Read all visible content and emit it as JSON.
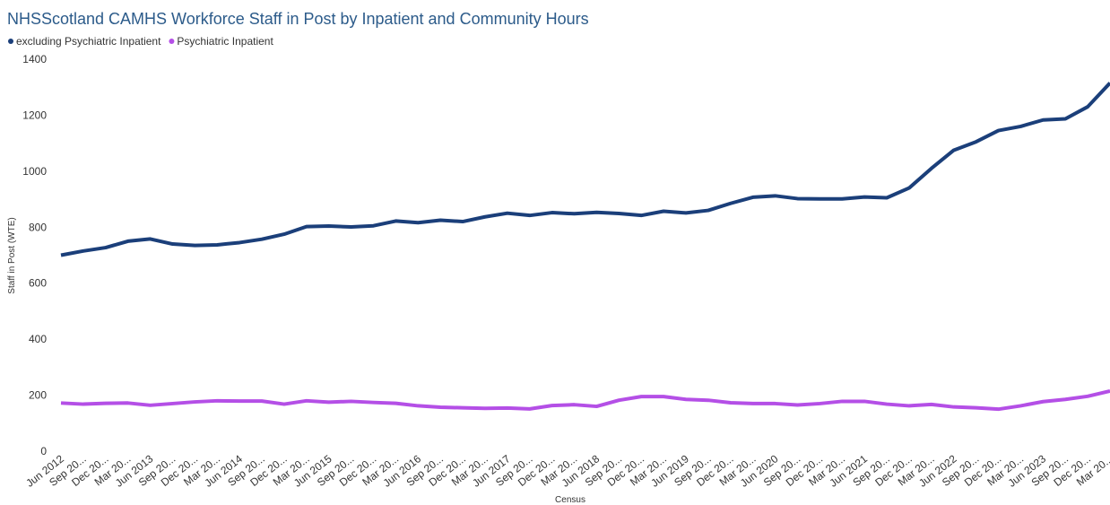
{
  "chart_data": {
    "type": "line",
    "title": "NHSScotland CAMHS Workforce Staff in Post by Inpatient and Community Hours",
    "y_label": "Staff in Post (WTE)",
    "x_label": "Census",
    "categories": [
      "Jun 2012",
      "Sep 20...",
      "Dec 20...",
      "Mar 20...",
      "Jun 2013",
      "Sep 20...",
      "Dec 20...",
      "Mar 20...",
      "Jun 2014",
      "Sep 20...",
      "Dec 20...",
      "Mar 20...",
      "Jun 2015",
      "Sep 20...",
      "Dec 20...",
      "Mar 20...",
      "Jun 2016",
      "Sep 20...",
      "Dec 20...",
      "Mar 20...",
      "Jun 2017",
      "Sep 20...",
      "Dec 20...",
      "Mar 20...",
      "Jun 2018",
      "Sep 20...",
      "Dec 20...",
      "Mar 20...",
      "Jun 2019",
      "Sep 20...",
      "Dec 20...",
      "Mar 20...",
      "Jun 2020",
      "Sep 20...",
      "Dec 20...",
      "Mar 20...",
      "Jun 2021",
      "Sep 20...",
      "Dec 20...",
      "Mar 20...",
      "Jun 2022",
      "Sep 20...",
      "Dec 20...",
      "Mar 20...",
      "Jun 2023",
      "Sep 20...",
      "Dec 20...",
      "Mar 20..."
    ],
    "series": [
      {
        "name": "excluding Psychiatric Inpatient",
        "color": "#1b3f7a",
        "values": [
          700,
          715,
          727,
          750,
          758,
          740,
          735,
          737,
          745,
          757,
          775,
          802,
          804,
          801,
          805,
          822,
          816,
          825,
          820,
          837,
          850,
          842,
          852,
          848,
          853,
          849,
          842,
          857,
          851,
          860,
          885,
          907,
          912,
          902,
          901,
          901,
          908,
          905,
          940,
          1010,
          1075,
          1105,
          1145,
          1160,
          1183,
          1187,
          1230,
          1315
        ]
      },
      {
        "name": "Psychiatric Inpatient",
        "color": "#b44fe6",
        "values": [
          172,
          168,
          171,
          172,
          164,
          170,
          176,
          180,
          179,
          179,
          168,
          180,
          175,
          178,
          174,
          171,
          162,
          157,
          155,
          153,
          154,
          151,
          163,
          166,
          160,
          182,
          195,
          195,
          185,
          182,
          173,
          170,
          170,
          165,
          170,
          178,
          178,
          168,
          162,
          167,
          158,
          155,
          150,
          162,
          177,
          185,
          196,
          215
        ]
      }
    ],
    "ylim": [
      0,
      1400
    ],
    "yticks": [
      0,
      200,
      400,
      600,
      800,
      1000,
      1200,
      1400
    ],
    "grid": false
  }
}
